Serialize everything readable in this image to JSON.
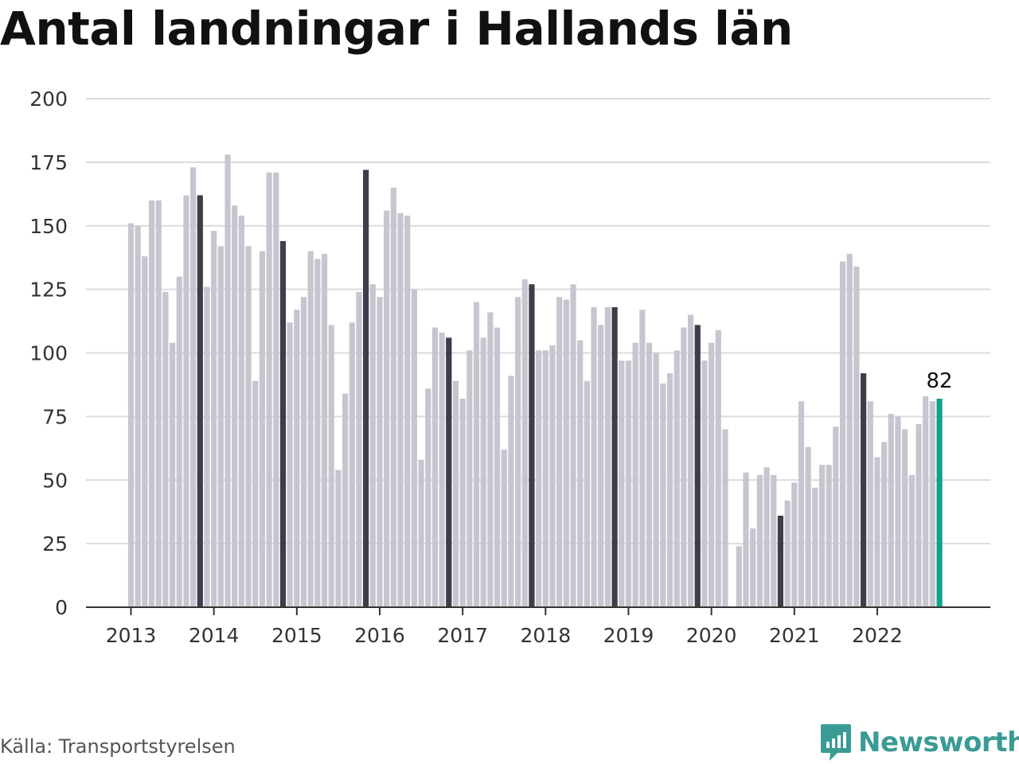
{
  "title": "Antal landningar i Hallands län",
  "source": "Källa: Transportstyrelsen",
  "brand": {
    "name": "Newsworthy",
    "icon": "newsworthy-logo-icon"
  },
  "colors": {
    "bar": "#c6c6d0",
    "bar_november": "#3e3d4a",
    "bar_latest": "#12a08f",
    "grid": "#dcdcdc",
    "axis": "#333333",
    "brand": "#3a9b95"
  },
  "chart_data": {
    "type": "bar",
    "title": "Antal landningar i Hallands län",
    "xlabel": "",
    "ylabel": "",
    "ylim": [
      0,
      200
    ],
    "yticks": [
      "0",
      "25",
      "50",
      "75",
      "100",
      "125",
      "150",
      "175",
      "200"
    ],
    "xticks": [
      "2013",
      "2014",
      "2015",
      "2016",
      "2017",
      "2018",
      "2019",
      "2020",
      "2021",
      "2022"
    ],
    "grid": true,
    "start": "2013-01",
    "highlight": "november",
    "values": [
      151,
      150,
      138,
      160,
      160,
      124,
      104,
      130,
      162,
      173,
      162,
      126,
      148,
      142,
      178,
      158,
      154,
      142,
      89,
      140,
      171,
      171,
      144,
      112,
      117,
      122,
      140,
      137,
      139,
      111,
      54,
      84,
      112,
      124,
      172,
      127,
      122,
      156,
      165,
      155,
      154,
      125,
      58,
      86,
      110,
      108,
      106,
      89,
      82,
      101,
      120,
      106,
      116,
      110,
      62,
      91,
      122,
      129,
      127,
      101,
      101,
      103,
      122,
      121,
      127,
      105,
      89,
      118,
      111,
      118,
      118,
      97,
      97,
      104,
      117,
      104,
      100,
      88,
      92,
      101,
      110,
      115,
      111,
      97,
      104,
      109,
      70,
      null,
      24,
      53,
      31,
      52,
      55,
      52,
      36,
      42,
      49,
      81,
      63,
      47,
      56,
      56,
      71,
      136,
      139,
      134,
      92,
      81,
      59,
      65,
      76,
      75,
      70,
      52,
      72,
      83,
      81,
      82
    ],
    "latest_label": "82"
  }
}
